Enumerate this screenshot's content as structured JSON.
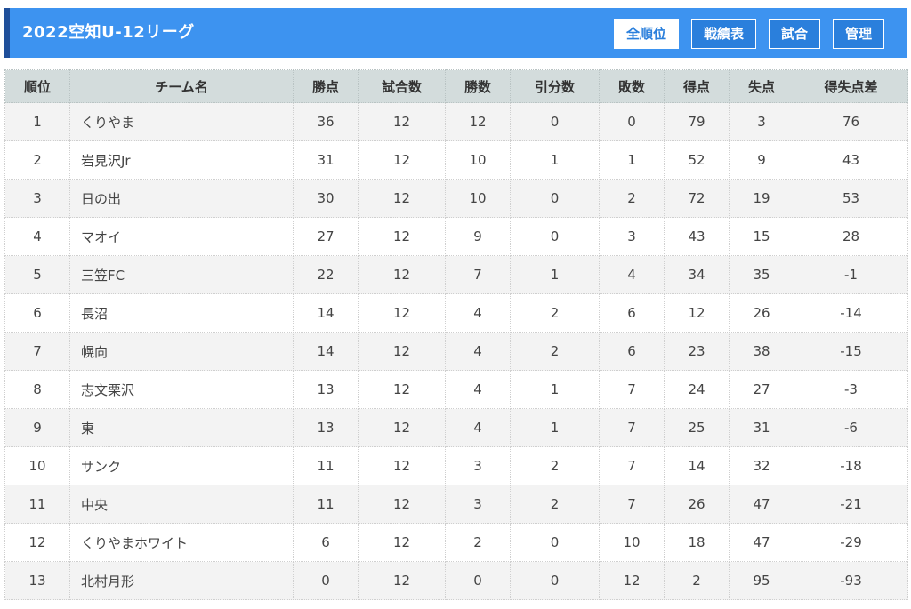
{
  "header": {
    "title": "2022空知U-12リーグ",
    "buttons": [
      "全順位",
      "戦績表",
      "試合",
      "管理"
    ],
    "active_button": "全順位"
  },
  "table": {
    "columns": [
      "順位",
      "チーム名",
      "勝点",
      "試合数",
      "勝数",
      "引分数",
      "敗数",
      "得点",
      "失点",
      "得失点差"
    ],
    "rows": [
      [
        "1",
        "くりやま",
        "36",
        "12",
        "12",
        "0",
        "0",
        "79",
        "3",
        "76"
      ],
      [
        "2",
        "岩見沢Jr",
        "31",
        "12",
        "10",
        "1",
        "1",
        "52",
        "9",
        "43"
      ],
      [
        "3",
        "日の出",
        "30",
        "12",
        "10",
        "0",
        "2",
        "72",
        "19",
        "53"
      ],
      [
        "4",
        "マオイ",
        "27",
        "12",
        "9",
        "0",
        "3",
        "43",
        "15",
        "28"
      ],
      [
        "5",
        "三笠FC",
        "22",
        "12",
        "7",
        "1",
        "4",
        "34",
        "35",
        "-1"
      ],
      [
        "6",
        "長沼",
        "14",
        "12",
        "4",
        "2",
        "6",
        "12",
        "26",
        "-14"
      ],
      [
        "7",
        "幌向",
        "14",
        "12",
        "4",
        "2",
        "6",
        "23",
        "38",
        "-15"
      ],
      [
        "8",
        "志文栗沢",
        "13",
        "12",
        "4",
        "1",
        "7",
        "24",
        "27",
        "-3"
      ],
      [
        "9",
        "東",
        "13",
        "12",
        "4",
        "1",
        "7",
        "25",
        "31",
        "-6"
      ],
      [
        "10",
        "サンク",
        "11",
        "12",
        "3",
        "2",
        "7",
        "14",
        "32",
        "-18"
      ],
      [
        "11",
        "中央",
        "11",
        "12",
        "3",
        "2",
        "7",
        "26",
        "47",
        "-21"
      ],
      [
        "12",
        "くりやまホワイト",
        "6",
        "12",
        "2",
        "0",
        "10",
        "18",
        "47",
        "-29"
      ],
      [
        "13",
        "北村月形",
        "0",
        "12",
        "0",
        "0",
        "12",
        "2",
        "95",
        "-93"
      ]
    ]
  },
  "colors": {
    "header_bg": "#3d93f0",
    "header_accent": "#1f4f9a",
    "table_head_bg": "#d3dcdc",
    "row_alt_bg": "#f3f3f3"
  }
}
